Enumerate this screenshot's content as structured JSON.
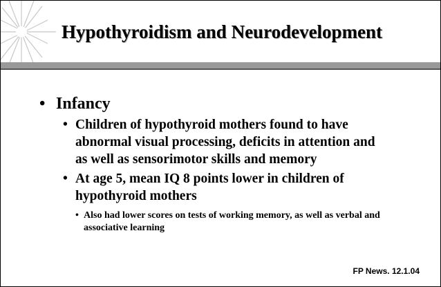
{
  "title": "Hypothyroidism and Neurodevelopment",
  "bullets": [
    {
      "text": "Infancy",
      "children": [
        {
          "text": "Children of hypothyroid mothers found  to have abnormal visual processing, deficits in attention and as well as sensorimotor skills and memory",
          "children": []
        },
        {
          "text": "At age 5, mean IQ 8 points lower in children of hypothyroid mothers",
          "children": [
            {
              "text": "Also had lower scores on tests of working memory, as well as verbal and associative learning"
            }
          ]
        }
      ]
    }
  ],
  "footer": "FP News. 12.1.04"
}
